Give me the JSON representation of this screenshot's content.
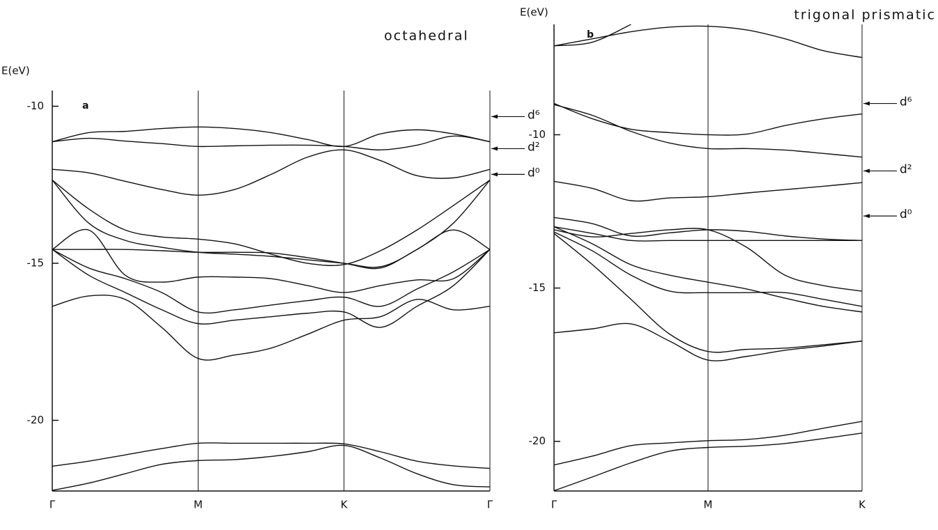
{
  "chart_data": [
    {
      "type": "line",
      "title": "octahedral",
      "panel_label": "a",
      "y_label": "E(eV)",
      "color": "#111111",
      "x": [
        0,
        0.25,
        0.5,
        0.75,
        1,
        1.25,
        1.5,
        1.75,
        2,
        2.25,
        2.5,
        2.75,
        3
      ],
      "xlim": [
        0,
        3
      ],
      "xticks": [
        {
          "value": 0,
          "label": "Γ"
        },
        {
          "value": 1,
          "label": "M"
        },
        {
          "value": 2,
          "label": "K"
        },
        {
          "value": 3,
          "label": "Γ"
        }
      ],
      "ylim": [
        -22.25,
        -9.5
      ],
      "yticks": [
        -10,
        -15,
        -20
      ],
      "levels": [
        {
          "label": "d⁶",
          "value": -10.33
        },
        {
          "label": "d²",
          "value": -11.35
        },
        {
          "label": "d⁰",
          "value": -12.17
        }
      ],
      "series": [
        {
          "values": [
            -11.13,
            -10.84,
            -10.8,
            -10.71,
            -10.66,
            -10.71,
            -10.84,
            -11.06,
            -11.28,
            -10.88,
            -10.75,
            -10.88,
            -11.13
          ]
        },
        {
          "values": [
            -11.13,
            -11.02,
            -11.11,
            -11.19,
            -11.28,
            -11.26,
            -11.24,
            -11.24,
            -11.28,
            -11.39,
            -11.24,
            -10.95,
            -11.13
          ]
        },
        {
          "values": [
            -12.01,
            -12.12,
            -12.39,
            -12.65,
            -12.83,
            -12.65,
            -12.17,
            -11.62,
            -11.39,
            -11.73,
            -12.21,
            -12.28,
            -12.01
          ]
        },
        {
          "values": [
            -12.35,
            -13.27,
            -13.94,
            -14.16,
            -14.23,
            -14.38,
            -14.71,
            -15.0,
            -15.04,
            -14.6,
            -13.94,
            -13.16,
            -12.35
          ]
        },
        {
          "values": [
            -12.35,
            -13.72,
            -14.27,
            -14.49,
            -14.65,
            -14.71,
            -14.78,
            -14.89,
            -15.0,
            -15.11,
            -14.56,
            -13.72,
            -12.35
          ]
        },
        {
          "values": [
            -14.56,
            -14.56,
            -14.56,
            -14.6,
            -14.65,
            -14.65,
            -14.67,
            -14.82,
            -15.0,
            -15.15,
            -14.56,
            -13.94,
            -14.56
          ]
        },
        {
          "values": [
            -14.56,
            -13.94,
            -15.38,
            -15.6,
            -15.44,
            -15.44,
            -15.49,
            -15.71,
            -15.93,
            -15.71,
            -15.53,
            -15.49,
            -14.56
          ]
        },
        {
          "values": [
            -14.56,
            -15.15,
            -15.49,
            -15.93,
            -16.55,
            -16.48,
            -16.33,
            -16.19,
            -16.08,
            -16.37,
            -15.82,
            -15.27,
            -14.56
          ]
        },
        {
          "values": [
            -16.37,
            -16.04,
            -16.15,
            -17.04,
            -18.03,
            -17.92,
            -17.7,
            -17.26,
            -16.81,
            -16.7,
            -16.15,
            -16.48,
            -16.37
          ]
        },
        {
          "values": [
            -14.56,
            -15.38,
            -15.93,
            -16.48,
            -16.92,
            -16.81,
            -16.7,
            -16.59,
            -16.55,
            -17.04,
            -16.37,
            -15.71,
            -14.56
          ]
        },
        {
          "values": [
            -21.46,
            -21.3,
            -21.1,
            -20.9,
            -20.73,
            -20.73,
            -20.73,
            -20.73,
            -20.75,
            -21.0,
            -21.3,
            -21.45,
            -21.53
          ]
        },
        {
          "values": [
            -22.23,
            -22.0,
            -21.7,
            -21.4,
            -21.28,
            -21.25,
            -21.15,
            -21.0,
            -20.8,
            -21.2,
            -21.7,
            -22.05,
            -22.12
          ]
        }
      ]
    },
    {
      "type": "line",
      "title": "trigonal prismatic",
      "panel_label": "b",
      "y_label": "E(eV)",
      "color": "#111111",
      "x": [
        0,
        0.25,
        0.5,
        0.75,
        1,
        1.25,
        1.5,
        1.75,
        2
      ],
      "xlim": [
        0,
        2
      ],
      "xticks": [
        {
          "value": 0,
          "label": "Γ"
        },
        {
          "value": 1,
          "label": "M"
        },
        {
          "value": 2,
          "label": "K"
        }
      ],
      "ylim": [
        -21.62,
        -6.4
      ],
      "yticks": [
        -10,
        -15,
        -20
      ],
      "levels": [
        {
          "label": "d⁶",
          "value": -8.98
        },
        {
          "label": "d²",
          "value": -11.18
        },
        {
          "label": "d⁰",
          "value": -12.65
        }
      ],
      "series": [
        {
          "values": [
            -7.1,
            -6.98,
            -6.4,
            null,
            null,
            null,
            null,
            null,
            null
          ]
        },
        {
          "values": [
            -7.1,
            -6.87,
            -6.64,
            -6.49,
            -6.46,
            -6.58,
            -6.87,
            -7.26,
            -7.48
          ]
        },
        {
          "values": [
            -8.98,
            -9.48,
            -9.82,
            -9.93,
            -10.0,
            -9.98,
            -9.7,
            -9.48,
            -9.32
          ]
        },
        {
          "values": [
            -9.02,
            -9.37,
            -9.89,
            -10.27,
            -10.45,
            -10.45,
            -10.5,
            -10.61,
            -10.73
          ]
        },
        {
          "values": [
            -11.52,
            -11.75,
            -12.15,
            -12.06,
            -12.02,
            -11.9,
            -11.79,
            -11.68,
            -11.56
          ]
        },
        {
          "values": [
            -12.7,
            -12.9,
            -13.3,
            -13.2,
            -13.1,
            -13.15,
            -13.3,
            -13.4,
            -13.45
          ]
        },
        {
          "values": [
            -13.0,
            -13.22,
            -13.45,
            -13.45,
            -13.45,
            -13.45,
            -13.45,
            -13.45,
            -13.45
          ]
        },
        {
          "values": [
            -13.0,
            -13.56,
            -14.24,
            -14.58,
            -14.81,
            -15.03,
            -15.33,
            -15.6,
            -15.78
          ]
        },
        {
          "values": [
            -13.1,
            -13.33,
            -13.22,
            -13.1,
            -13.1,
            -13.67,
            -14.58,
            -14.92,
            -15.1
          ]
        },
        {
          "values": [
            -13.17,
            -13.79,
            -14.58,
            -15.1,
            -15.15,
            -15.15,
            -15.15,
            -15.37,
            -15.6
          ]
        },
        {
          "values": [
            -13.22,
            -14.24,
            -15.37,
            -16.5,
            -17.07,
            -17.0,
            -16.96,
            -16.85,
            -16.73
          ]
        },
        {
          "values": [
            -16.46,
            -16.33,
            -16.17,
            -16.73,
            -17.35,
            -17.23,
            -17.03,
            -16.89,
            -16.73
          ]
        },
        {
          "values": [
            -20.77,
            -20.48,
            -20.14,
            -20.05,
            -19.98,
            -19.94,
            -19.8,
            -19.57,
            -19.35
          ]
        },
        {
          "values": [
            -21.61,
            -21.16,
            -20.7,
            -20.32,
            -20.2,
            -20.16,
            -20.07,
            -19.91,
            -19.73
          ]
        }
      ]
    }
  ]
}
